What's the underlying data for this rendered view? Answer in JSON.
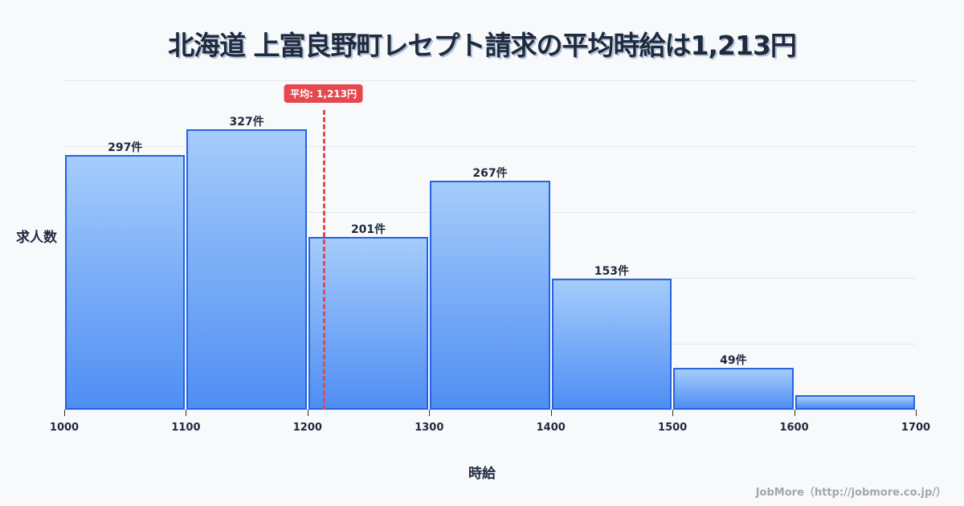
{
  "header": {
    "title": "北海道 上富良野町レセプト請求の平均時給は1,213円"
  },
  "chart_data": {
    "type": "bar",
    "subtype": "histogram",
    "title": "北海道 上富良野町レセプト請求の平均時給は1,213円",
    "xlabel": "時給",
    "ylabel": "求人数",
    "bins": [
      {
        "from": 1000,
        "to": 1100,
        "value": 297,
        "label": "297件"
      },
      {
        "from": 1100,
        "to": 1200,
        "value": 327,
        "label": "327件"
      },
      {
        "from": 1200,
        "to": 1300,
        "value": 201,
        "label": "201件"
      },
      {
        "from": 1300,
        "to": 1400,
        "value": 267,
        "label": "267件"
      },
      {
        "from": 1400,
        "to": 1500,
        "value": 153,
        "label": "153件"
      },
      {
        "from": 1500,
        "to": 1600,
        "value": 49,
        "label": "49件"
      },
      {
        "from": 1600,
        "to": 1700,
        "value": 17,
        "label": ""
      }
    ],
    "categories": [
      "1000-1100",
      "1100-1200",
      "1200-1300",
      "1300-1400",
      "1400-1500",
      "1500-1600",
      "1600-1700"
    ],
    "values": [
      297,
      327,
      201,
      267,
      153,
      49,
      17
    ],
    "x_ticks": [
      "1000",
      "1100",
      "1200",
      "1300",
      "1400",
      "1500",
      "1600",
      "1700"
    ],
    "xlim": [
      1000,
      1700
    ],
    "ylim": [
      0,
      384
    ],
    "grid": true,
    "average": {
      "value": 1213,
      "label": "平均: 1,213円",
      "color": "#e5484d"
    },
    "bar_color_top": "#a5ccfb",
    "bar_color_bottom": "#4f8ef3",
    "bar_border": "#2563e0"
  },
  "axis": {
    "ylabel": "求人数",
    "xlabel": "時給"
  },
  "footer": {
    "credit": "JobMore（http://jobmore.co.jp/）"
  }
}
